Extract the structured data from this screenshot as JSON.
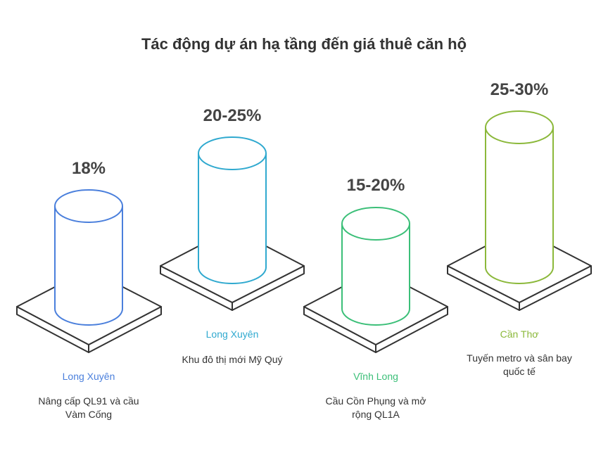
{
  "title": "Tác động dự án hạ tầng đến giá thuê căn hộ",
  "items": [
    {
      "value": "18%",
      "location": "Long Xuyên",
      "description": "Nâng cấp QL91 và cầu Vàm Cống",
      "color": "#4a7fdc"
    },
    {
      "value": "20-25%",
      "location": "Long Xuyên",
      "description": "Khu đô thị mới Mỹ Quý",
      "color": "#2fa9cf"
    },
    {
      "value": "15-20%",
      "location": "Vĩnh Long",
      "description": "Cầu Cồn Phụng và mở rộng QL1A",
      "color": "#3bbf78"
    },
    {
      "value": "25-30%",
      "location": "Cần Thơ",
      "description": "Tuyến metro và sân bay quốc tế",
      "color": "#8bb83a"
    }
  ],
  "colors": {
    "title": "#333333",
    "platform_stroke": "#333333"
  }
}
